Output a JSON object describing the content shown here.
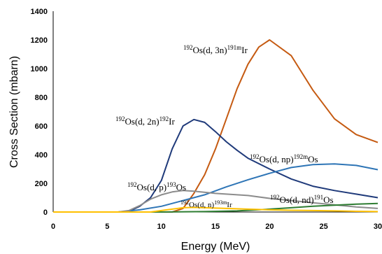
{
  "chart_data": {
    "type": "line",
    "xlabel": "Energy (MeV)",
    "ylabel": "Cross  Section (mbarn)",
    "xlim": [
      0,
      30
    ],
    "ylim": [
      0,
      1400
    ],
    "xticks": [
      0,
      5,
      10,
      15,
      20,
      25,
      30
    ],
    "yticks": [
      0,
      200,
      400,
      600,
      800,
      1000,
      1200,
      1400
    ],
    "grid": false,
    "legend": "none",
    "series": [
      {
        "label_parts": [
          "192",
          "Os(d, 3n)",
          "191m",
          "Ir"
        ],
        "color": "#C55A11",
        "points": [
          [
            0,
            0
          ],
          [
            5,
            0
          ],
          [
            10,
            0
          ],
          [
            11,
            0
          ],
          [
            12,
            25
          ],
          [
            13,
            130
          ],
          [
            14,
            260
          ],
          [
            15,
            440
          ],
          [
            16,
            650
          ],
          [
            17,
            860
          ],
          [
            18,
            1030
          ],
          [
            19,
            1150
          ],
          [
            20,
            1200
          ],
          [
            22,
            1090
          ],
          [
            24,
            850
          ],
          [
            26,
            650
          ],
          [
            28,
            540
          ],
          [
            30,
            485
          ]
        ]
      },
      {
        "label_parts": [
          "192",
          "Os(d, 2n)",
          "192",
          "Ir"
        ],
        "color": "#1F3A7A",
        "points": [
          [
            0,
            0
          ],
          [
            6,
            0
          ],
          [
            7,
            5
          ],
          [
            8,
            40
          ],
          [
            9,
            100
          ],
          [
            10,
            220
          ],
          [
            11,
            440
          ],
          [
            12,
            600
          ],
          [
            13,
            645
          ],
          [
            14,
            625
          ],
          [
            15,
            560
          ],
          [
            16,
            490
          ],
          [
            17,
            430
          ],
          [
            18,
            375
          ],
          [
            20,
            300
          ],
          [
            22,
            230
          ],
          [
            24,
            180
          ],
          [
            26,
            150
          ],
          [
            28,
            125
          ],
          [
            30,
            100
          ]
        ]
      },
      {
        "label_parts": [
          "192",
          "Os(d, np)",
          "192m",
          "Os"
        ],
        "color": "#2E75B6",
        "points": [
          [
            0,
            0
          ],
          [
            6,
            0
          ],
          [
            8,
            15
          ],
          [
            10,
            40
          ],
          [
            12,
            80
          ],
          [
            14,
            120
          ],
          [
            16,
            175
          ],
          [
            18,
            225
          ],
          [
            20,
            270
          ],
          [
            22,
            310
          ],
          [
            24,
            330
          ],
          [
            26,
            335
          ],
          [
            28,
            325
          ],
          [
            30,
            295
          ]
        ]
      },
      {
        "label_parts": [
          "192",
          "Os(d, p)",
          "193",
          "Os"
        ],
        "color": "#8C8C8C",
        "points": [
          [
            0,
            0
          ],
          [
            6,
            0
          ],
          [
            7,
            10
          ],
          [
            8,
            45
          ],
          [
            9,
            90
          ],
          [
            10,
            120
          ],
          [
            11,
            140
          ],
          [
            12,
            150
          ],
          [
            13,
            145
          ],
          [
            15,
            130
          ],
          [
            18,
            115
          ],
          [
            20,
            95
          ],
          [
            22,
            80
          ],
          [
            24,
            65
          ],
          [
            26,
            50
          ],
          [
            28,
            35
          ],
          [
            30,
            25
          ]
        ]
      },
      {
        "label_parts": [
          "192",
          "Os(d, nd)",
          "191",
          "Os"
        ],
        "color": "#2E7D32",
        "points": [
          [
            0,
            0
          ],
          [
            10,
            0
          ],
          [
            14,
            3
          ],
          [
            17,
            8
          ],
          [
            20,
            20
          ],
          [
            22,
            30
          ],
          [
            24,
            40
          ],
          [
            26,
            48
          ],
          [
            28,
            55
          ],
          [
            30,
            60
          ]
        ]
      },
      {
        "label_parts": [
          "192",
          "Os(d, n)",
          "193m",
          "Ir"
        ],
        "color": "#FFC000",
        "points": [
          [
            0,
            0
          ],
          [
            9,
            0
          ],
          [
            10,
            10
          ],
          [
            11,
            20
          ],
          [
            12,
            30
          ],
          [
            13,
            32
          ],
          [
            14,
            30
          ],
          [
            16,
            25
          ],
          [
            18,
            20
          ],
          [
            20,
            15
          ],
          [
            22,
            12
          ],
          [
            24,
            10
          ],
          [
            26,
            8
          ],
          [
            28,
            5
          ],
          [
            30,
            3
          ]
        ]
      }
    ]
  }
}
